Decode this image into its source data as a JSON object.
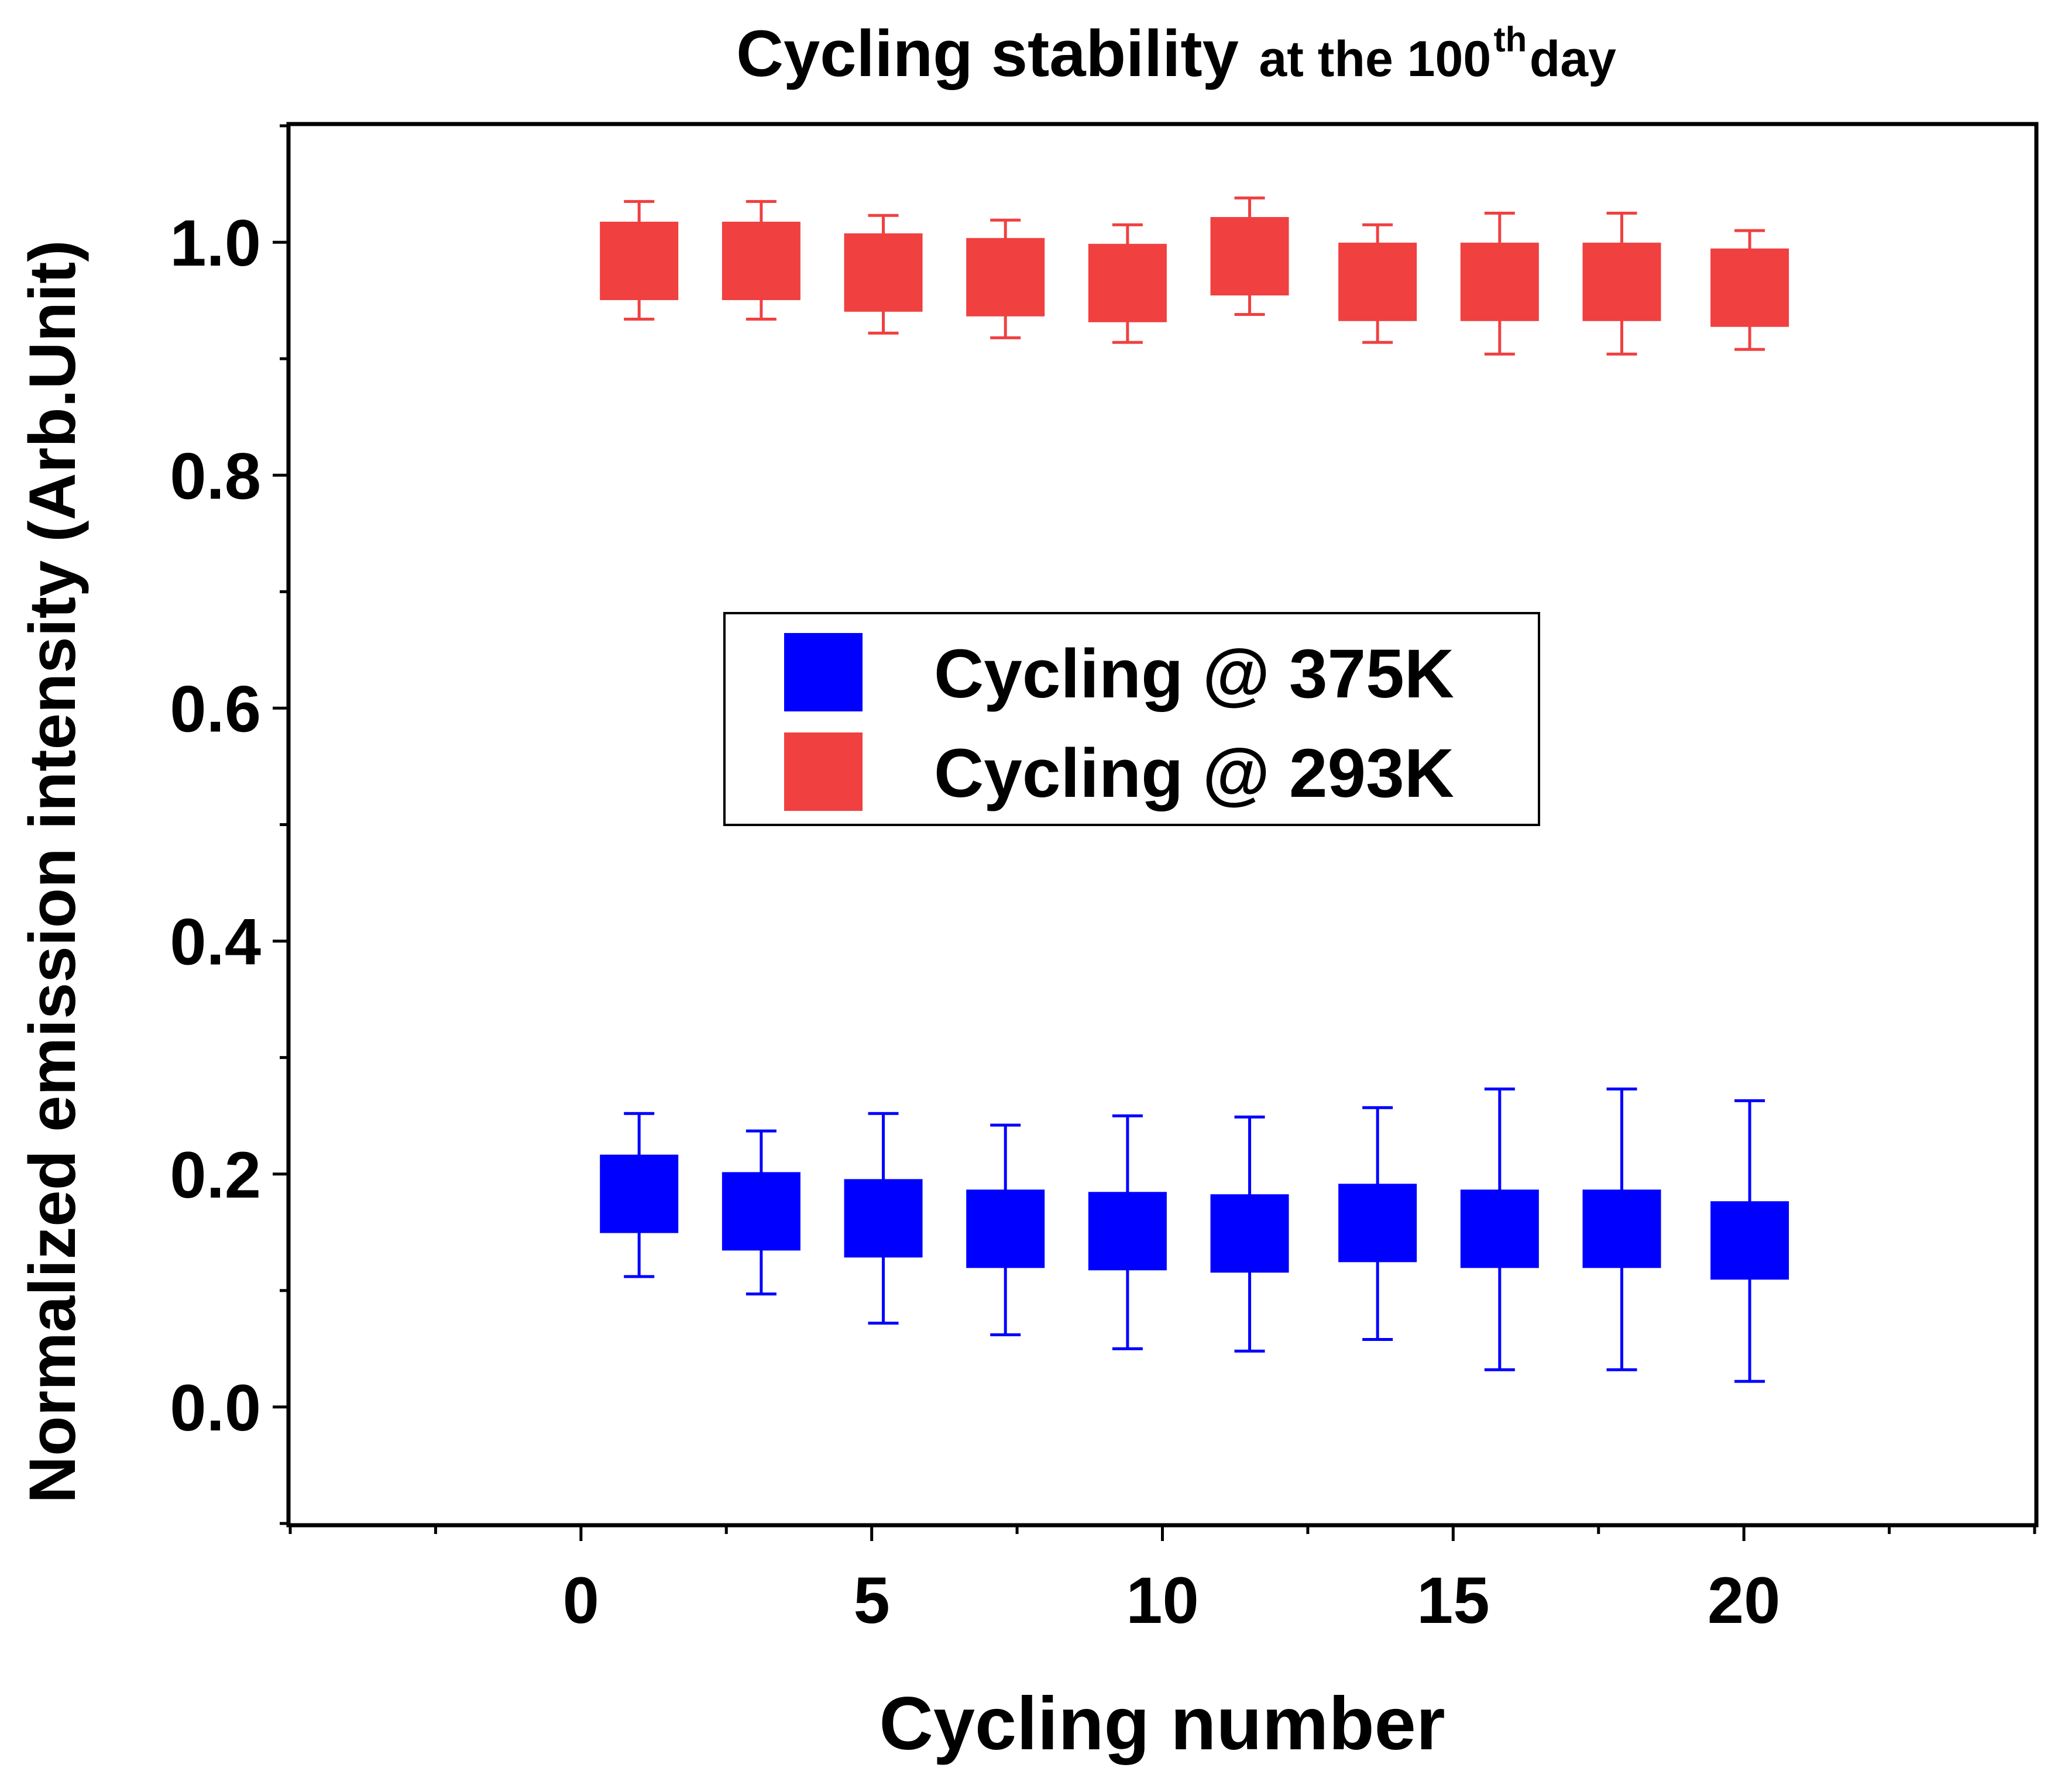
{
  "chart_data": {
    "type": "scatter",
    "title": "Cycling stability",
    "title_suffix": "at the 100",
    "title_superscript": "th",
    "title_end": " day",
    "xlabel": "Cycling number",
    "ylabel": "Normalized emission intensity (Arb.Unit)",
    "xlim": [
      -5,
      25
    ],
    "ylim": [
      -0.1,
      1.1
    ],
    "xticks": [
      0,
      5,
      10,
      15,
      20
    ],
    "xtick_labels": [
      "0",
      "5",
      "10",
      "15",
      "20"
    ],
    "yticks": [
      0.0,
      0.2,
      0.4,
      0.6,
      0.8,
      1.0
    ],
    "ytick_labels": [
      "0.0",
      "0.2",
      "0.4",
      "0.6",
      "0.8",
      "1.0"
    ],
    "grid": false,
    "legend_position": "center",
    "series": [
      {
        "name": "Cycling @ 375K",
        "color": "#0000ff",
        "x": [
          1,
          3.1,
          5.2,
          7.3,
          9.4,
          11.5,
          13.7,
          15.8,
          17.9,
          20.1
        ],
        "y": [
          0.183,
          0.168,
          0.162,
          0.153,
          0.151,
          0.149,
          0.158,
          0.153,
          0.153,
          0.143
        ],
        "y_low": [
          0.112,
          0.097,
          0.072,
          0.062,
          0.05,
          0.048,
          0.058,
          0.032,
          0.032,
          0.022
        ],
        "y_high": [
          0.252,
          0.237,
          0.252,
          0.242,
          0.25,
          0.249,
          0.257,
          0.273,
          0.273,
          0.263
        ]
      },
      {
        "name": "Cycling @ 293K",
        "color": "#f04040",
        "x": [
          1,
          3.1,
          5.2,
          7.3,
          9.4,
          11.5,
          13.7,
          15.8,
          17.9,
          20.1
        ],
        "y": [
          0.984,
          0.984,
          0.974,
          0.97,
          0.965,
          0.988,
          0.966,
          0.966,
          0.966,
          0.961
        ],
        "y_low": [
          0.934,
          0.934,
          0.922,
          0.918,
          0.914,
          0.938,
          0.914,
          0.904,
          0.904,
          0.908
        ],
        "y_high": [
          1.035,
          1.035,
          1.023,
          1.019,
          1.015,
          1.038,
          1.015,
          1.025,
          1.025,
          1.01
        ]
      }
    ]
  }
}
